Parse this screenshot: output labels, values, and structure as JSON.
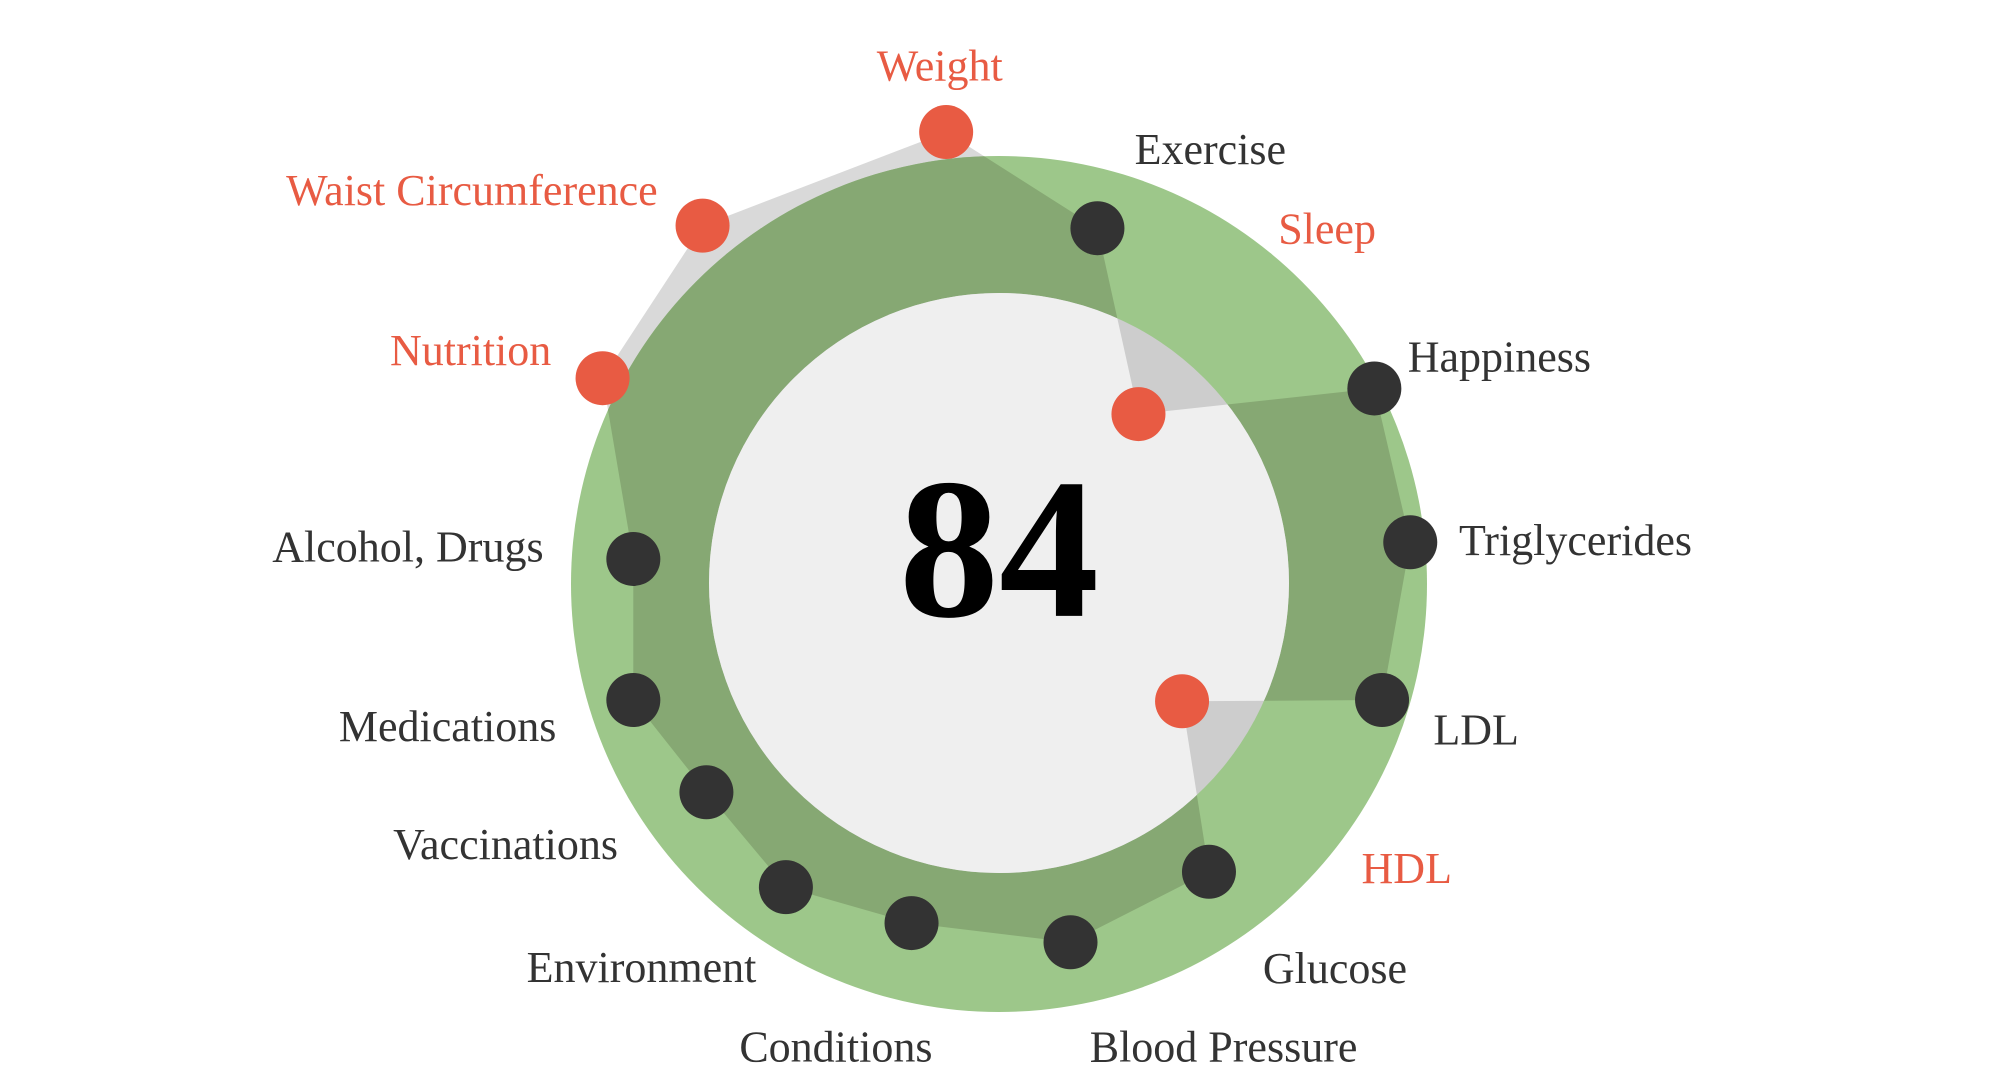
{
  "score": "84",
  "metrics": [
    {
      "name": "Weight",
      "color": "#e85b43"
    },
    {
      "name": "Exercise",
      "color": "#333333"
    },
    {
      "name": "Sleep",
      "color": "#e85b43"
    },
    {
      "name": "Happiness",
      "color": "#333333"
    },
    {
      "name": "Triglycerides",
      "color": "#333333"
    },
    {
      "name": "LDL",
      "color": "#333333"
    },
    {
      "name": "HDL",
      "color": "#e85b43"
    },
    {
      "name": "Glucose",
      "color": "#333333"
    },
    {
      "name": "Blood Pressure",
      "color": "#333333"
    },
    {
      "name": "Conditions",
      "color": "#333333"
    },
    {
      "name": "Environment",
      "color": "#333333"
    },
    {
      "name": "Vaccinations",
      "color": "#333333"
    },
    {
      "name": "Medications",
      "color": "#333333"
    },
    {
      "name": "Alcohol, Drugs",
      "color": "#333333"
    },
    {
      "name": "Nutrition",
      "color": "#e85b43"
    },
    {
      "name": "Waist Circumference",
      "color": "#e85b43"
    }
  ]
}
